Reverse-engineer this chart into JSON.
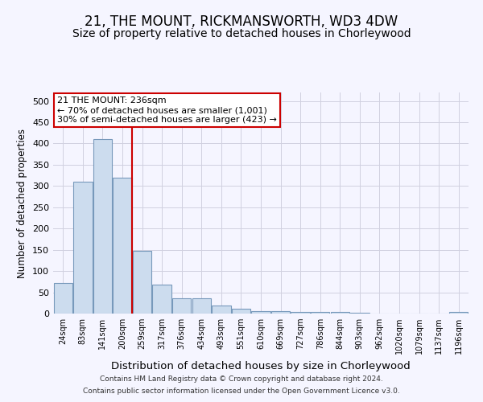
{
  "title": "21, THE MOUNT, RICKMANSWORTH, WD3 4DW",
  "subtitle": "Size of property relative to detached houses in Chorleywood",
  "xlabel": "Distribution of detached houses by size in Chorleywood",
  "ylabel": "Number of detached properties",
  "footer_line1": "Contains HM Land Registry data © Crown copyright and database right 2024.",
  "footer_line2": "Contains public sector information licensed under the Open Government Licence v3.0.",
  "bin_labels": [
    "24sqm",
    "83sqm",
    "141sqm",
    "200sqm",
    "259sqm",
    "317sqm",
    "376sqm",
    "434sqm",
    "493sqm",
    "551sqm",
    "610sqm",
    "669sqm",
    "727sqm",
    "786sqm",
    "844sqm",
    "903sqm",
    "962sqm",
    "1020sqm",
    "1079sqm",
    "1137sqm",
    "1196sqm"
  ],
  "bar_values": [
    72,
    310,
    410,
    320,
    147,
    68,
    36,
    36,
    18,
    11,
    6,
    6,
    4,
    4,
    3,
    1,
    0,
    0,
    0,
    0,
    4
  ],
  "bar_color": "#ccdcee",
  "bar_edge_color": "#7799bb",
  "grid_color": "#d0d0e0",
  "background_color": "#f5f5ff",
  "red_line_bin": 3,
  "red_line_color": "#cc0000",
  "annotation_line1": "21 THE MOUNT: 236sqm",
  "annotation_line2": "← 70% of detached houses are smaller (1,001)",
  "annotation_line3": "30% of semi-detached houses are larger (423) →",
  "annotation_box_color": "#ffffff",
  "annotation_box_edge": "#cc0000",
  "ylim": [
    0,
    520
  ],
  "yticks": [
    0,
    50,
    100,
    150,
    200,
    250,
    300,
    350,
    400,
    450,
    500
  ],
  "title_fontsize": 12,
  "subtitle_fontsize": 10,
  "xlabel_fontsize": 9.5,
  "ylabel_fontsize": 8.5,
  "annotation_fontsize": 8
}
